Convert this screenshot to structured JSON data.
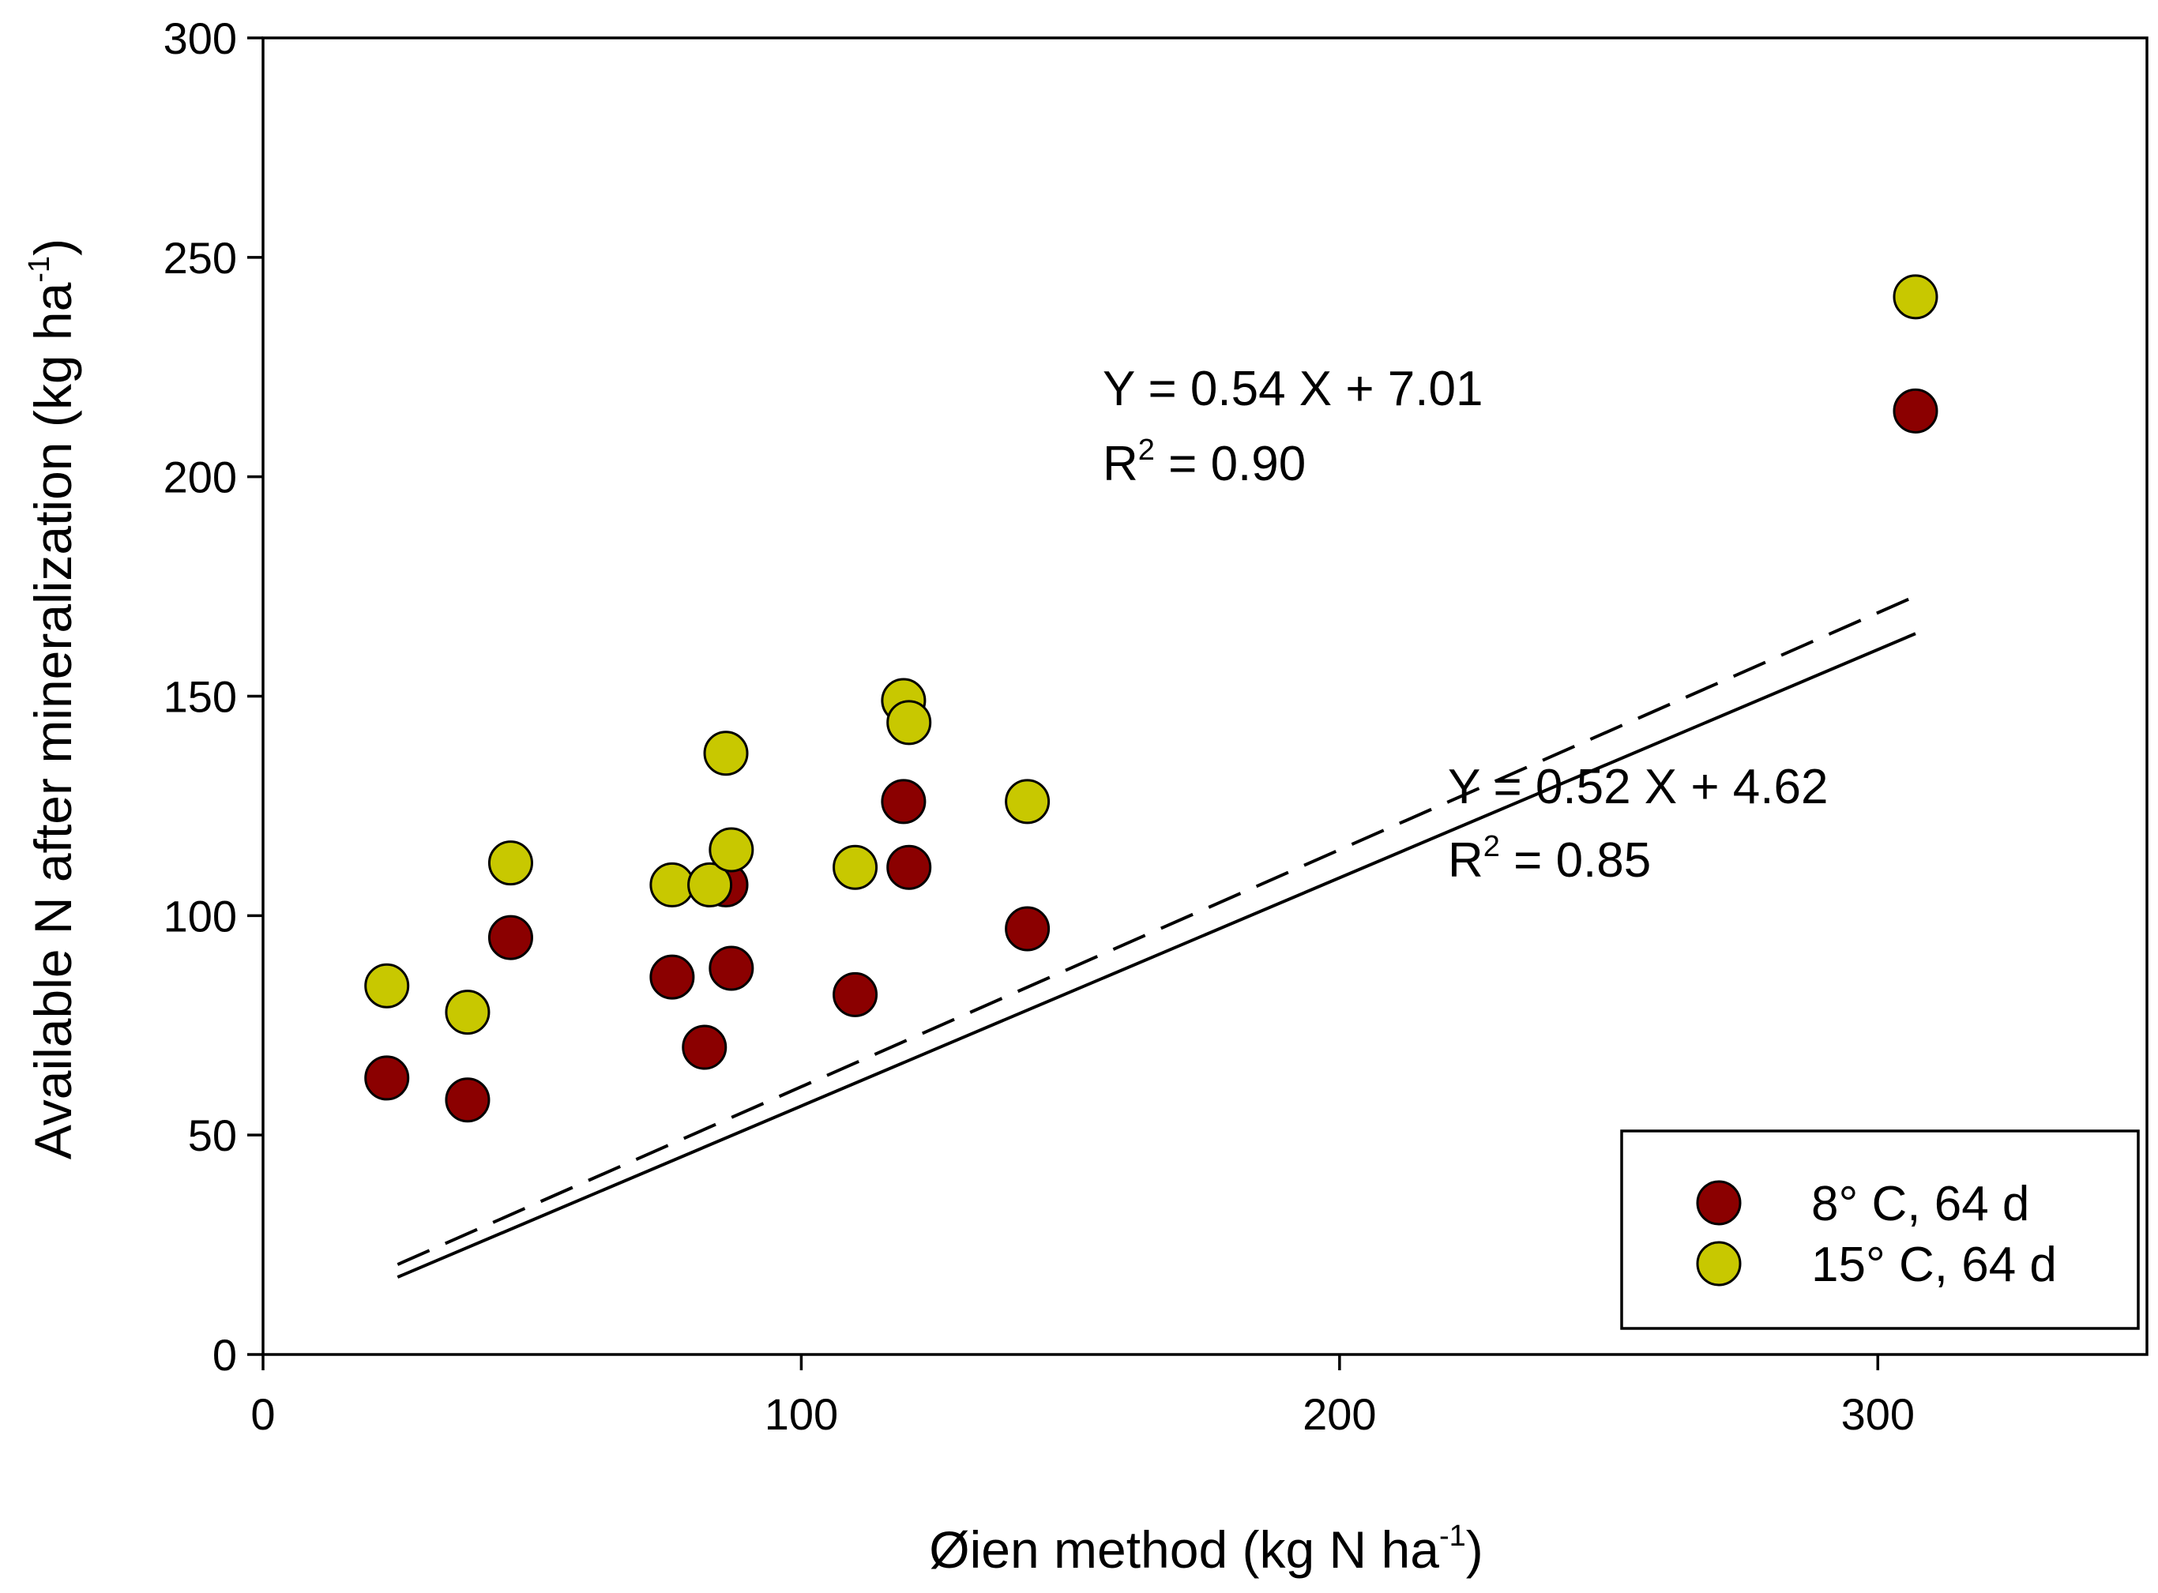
{
  "chart_data": {
    "type": "scatter",
    "title": "",
    "xlabel": {
      "main": "Øien method (kg N ha",
      "sup": "-1",
      "close": ")"
    },
    "ylabel": {
      "main": "Available N after mineralization (kg ha",
      "sup": "-1",
      "close": ")"
    },
    "xlim": [
      0,
      350
    ],
    "ylim": [
      0,
      300
    ],
    "xticks": [
      0,
      100,
      200,
      300
    ],
    "yticks": [
      0,
      50,
      100,
      150,
      200,
      250,
      300
    ],
    "grid": false,
    "legend_position": "bottom-right",
    "series": [
      {
        "name": "8° C, 64 d",
        "color": "#8b0000",
        "points": [
          [
            23,
            63
          ],
          [
            38,
            58
          ],
          [
            46,
            95
          ],
          [
            76,
            86
          ],
          [
            82,
            70
          ],
          [
            86,
            107
          ],
          [
            87,
            88
          ],
          [
            110,
            82
          ],
          [
            119,
            126
          ],
          [
            120,
            111
          ],
          [
            142,
            97
          ],
          [
            307,
            215
          ]
        ],
        "fit": {
          "slope": 0.52,
          "intercept": 4.62,
          "x_range": [
            25,
            307
          ],
          "style": "solid",
          "equation": "Y = 0.52 X + 4.62",
          "r2_label": "R",
          "r2_sup": "2",
          "r2_value": " = 0.85"
        }
      },
      {
        "name": "15° C, 64 d",
        "color": "#c8c800",
        "points": [
          [
            23,
            84
          ],
          [
            38,
            78
          ],
          [
            46,
            112
          ],
          [
            76,
            107
          ],
          [
            83,
            107
          ],
          [
            86,
            137
          ],
          [
            87,
            115
          ],
          [
            110,
            111
          ],
          [
            119,
            149
          ],
          [
            120,
            144
          ],
          [
            142,
            126
          ],
          [
            307,
            241
          ]
        ],
        "fit": {
          "slope": 0.54,
          "intercept": 7.01,
          "x_range": [
            25,
            307
          ],
          "style": "dashed",
          "equation": "Y = 0.54 X + 7.01",
          "r2_label": "R",
          "r2_sup": "2",
          "r2_value": " = 0.90"
        }
      }
    ]
  }
}
